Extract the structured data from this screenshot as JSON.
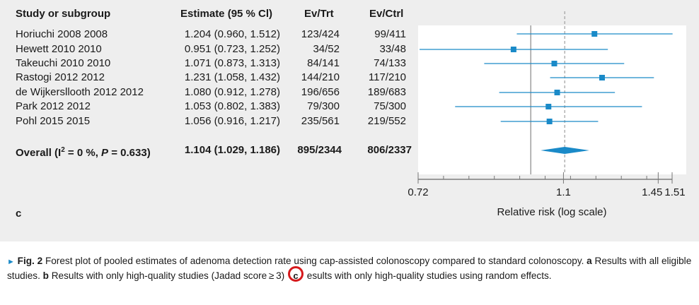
{
  "headers": {
    "study": "Study or subgroup",
    "estimate": "Estimate (95 % Cl)",
    "ev_trt": "Ev/Trt",
    "ev_ctrl": "Ev/Ctrl"
  },
  "rows": [
    {
      "study": "Horiuchi 2008 2008",
      "estimate": "1.204 (0.960, 1.512)",
      "ev_trt": "123/424",
      "ev_ctrl": "99/411"
    },
    {
      "study": "Hewett 2010 2010",
      "estimate": "0.951 (0.723, 1.252)",
      "ev_trt": "34/52",
      "ev_ctrl": "33/48"
    },
    {
      "study": "Takeuchi 2010 2010",
      "estimate": "1.071 (0.873, 1.313)",
      "ev_trt": "84/141",
      "ev_ctrl": "74/133"
    },
    {
      "study": "Rastogi 2012 2012",
      "estimate": "1.231 (1.058, 1.432)",
      "ev_trt": "144/210",
      "ev_ctrl": "117/210"
    },
    {
      "study": "de Wijkersllooth 2012 2012",
      "estimate": "1.080 (0.912, 1.278)",
      "ev_trt": "196/656",
      "ev_ctrl": "189/683"
    },
    {
      "study": "Park 2012 2012",
      "estimate": "1.053 (0.802, 1.383)",
      "ev_trt": "79/300",
      "ev_ctrl": "75/300"
    },
    {
      "study": "Pohl 2015 2015",
      "estimate": "1.056 (0.916, 1.217)",
      "ev_trt": "235/561",
      "ev_ctrl": "219/552"
    }
  ],
  "overall": {
    "label_prefix": "Overall (I",
    "label_sup": "2",
    "label_mid": " = 0 %, ",
    "label_p": "P",
    "label_end": " = 0.633)",
    "estimate": "1.104 (1.029, 1.186)",
    "ev_trt": "895/2344",
    "ev_ctrl": "806/2337"
  },
  "panel_letter": "c",
  "caption": {
    "marker": "►",
    "fig_label": "Fig. 2",
    "text1": " Forest plot of pooled estimates of adenoma detection rate using cap-assisted colonoscopy compared to standard colonoscopy. ",
    "a": "a",
    "text2": " Results with all eligible studies. ",
    "b": "b",
    "text3": " Results with only high-quality studies (Jadad score ≥ 3) ",
    "c": "c",
    "text4": " esults with only high-quality studies using random effects."
  },
  "colors": {
    "marker": "#1a8ac8",
    "null_line": "#9e9e9e",
    "panel_bg": "#eeeeee",
    "highlight_circle": "#d6191c"
  },
  "chart_data": {
    "type": "forest",
    "xlabel": "Relative risk (log scale)",
    "x_scale": "log",
    "xlim": [
      0.72,
      1.51
    ],
    "x_ticks": [
      0.72,
      1.1,
      1.45,
      1.51
    ],
    "x_tick_labels": [
      "0.72",
      "1.1",
      "1.45",
      "1.51"
    ],
    "null_line": 1.0,
    "pooled_reference_line": 1.104,
    "studies": [
      {
        "name": "Horiuchi 2008 2008",
        "estimate": 1.204,
        "lower": 0.96,
        "upper": 1.512
      },
      {
        "name": "Hewett 2010 2010",
        "estimate": 0.951,
        "lower": 0.723,
        "upper": 1.252
      },
      {
        "name": "Takeuchi 2010 2010",
        "estimate": 1.071,
        "lower": 0.873,
        "upper": 1.313
      },
      {
        "name": "Rastogi 2012 2012",
        "estimate": 1.231,
        "lower": 1.058,
        "upper": 1.432
      },
      {
        "name": "de Wijkersllooth 2012 2012",
        "estimate": 1.08,
        "lower": 0.912,
        "upper": 1.278
      },
      {
        "name": "Park 2012 2012",
        "estimate": 1.053,
        "lower": 0.802,
        "upper": 1.383
      },
      {
        "name": "Pohl 2015 2015",
        "estimate": 1.056,
        "lower": 0.916,
        "upper": 1.217
      }
    ],
    "overall": {
      "estimate": 1.104,
      "lower": 1.029,
      "upper": 1.186
    }
  }
}
